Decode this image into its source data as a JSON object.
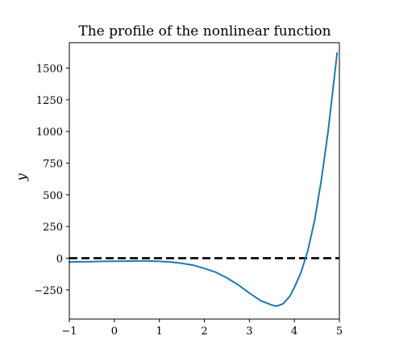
{
  "chart_data": {
    "type": "line",
    "title": "The profile of the nonlinear function",
    "xlabel": "",
    "ylabel": "y",
    "xlim": [
      -1,
      5
    ],
    "ylim": [
      -480,
      1700
    ],
    "x_ticks": [
      -1,
      0,
      1,
      2,
      3,
      4,
      5
    ],
    "x_tick_labels": [
      "−1",
      "0",
      "1",
      "2",
      "3",
      "4",
      "5"
    ],
    "y_ticks": [
      -250,
      0,
      250,
      500,
      750,
      1000,
      1250,
      1500
    ],
    "y_tick_labels": [
      "−250",
      "0",
      "250",
      "500",
      "750",
      "1000",
      "1250",
      "1500"
    ],
    "grid": false,
    "series": [
      {
        "color": "#1f77b4",
        "x": [
          -1.0,
          -0.75,
          -0.5,
          -0.25,
          0.0,
          0.25,
          0.5,
          0.75,
          1.0,
          1.25,
          1.5,
          1.75,
          2.0,
          2.25,
          2.5,
          2.75,
          3.0,
          3.25,
          3.5,
          3.6,
          3.75,
          3.9,
          4.0,
          4.15,
          4.3,
          4.45,
          4.6,
          4.75,
          4.95
        ],
        "values": [
          -30,
          -28,
          -27,
          -25,
          -24,
          -23,
          -22,
          -22,
          -25,
          -30,
          -40,
          -55,
          -80,
          -110,
          -155,
          -210,
          -275,
          -335,
          -370,
          -378,
          -360,
          -300,
          -230,
          -110,
          60,
          300,
          620,
          1000,
          1620
        ]
      }
    ],
    "reference_line": {
      "y": 0,
      "style": "dashed",
      "color": "#000000"
    }
  }
}
